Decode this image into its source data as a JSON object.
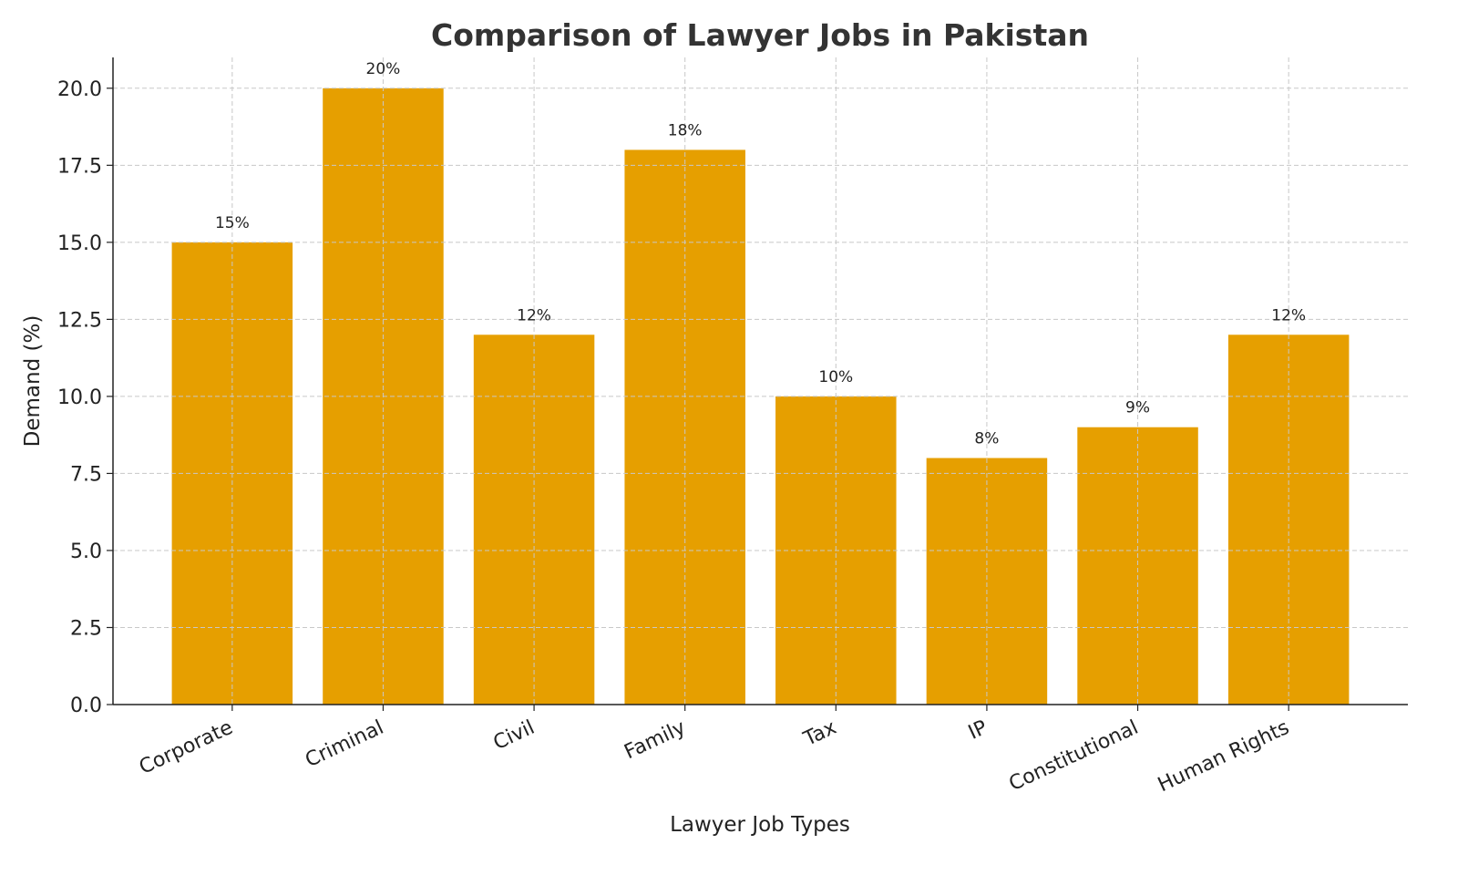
{
  "chart_data": {
    "type": "bar",
    "title": "Comparison of Lawyer Jobs in Pakistan",
    "xlabel": "Lawyer Job Types",
    "ylabel": "Demand (%)",
    "categories": [
      "Corporate",
      "Criminal",
      "Civil",
      "Family",
      "Tax",
      "IP",
      "Constitutional",
      "Human Rights"
    ],
    "values": [
      15,
      20,
      12,
      18,
      10,
      8,
      9,
      12
    ],
    "data_labels": [
      "15%",
      "20%",
      "12%",
      "18%",
      "10%",
      "8%",
      "9%",
      "12%"
    ],
    "yticks": [
      "0.0",
      "2.5",
      "5.0",
      "7.5",
      "10.0",
      "12.5",
      "15.0",
      "17.5",
      "20.0"
    ],
    "ylim": [
      0,
      21
    ],
    "grid": true,
    "bar_color": "#E69F00",
    "grid_color": "#c8c8c8",
    "title_color": "#333333"
  }
}
